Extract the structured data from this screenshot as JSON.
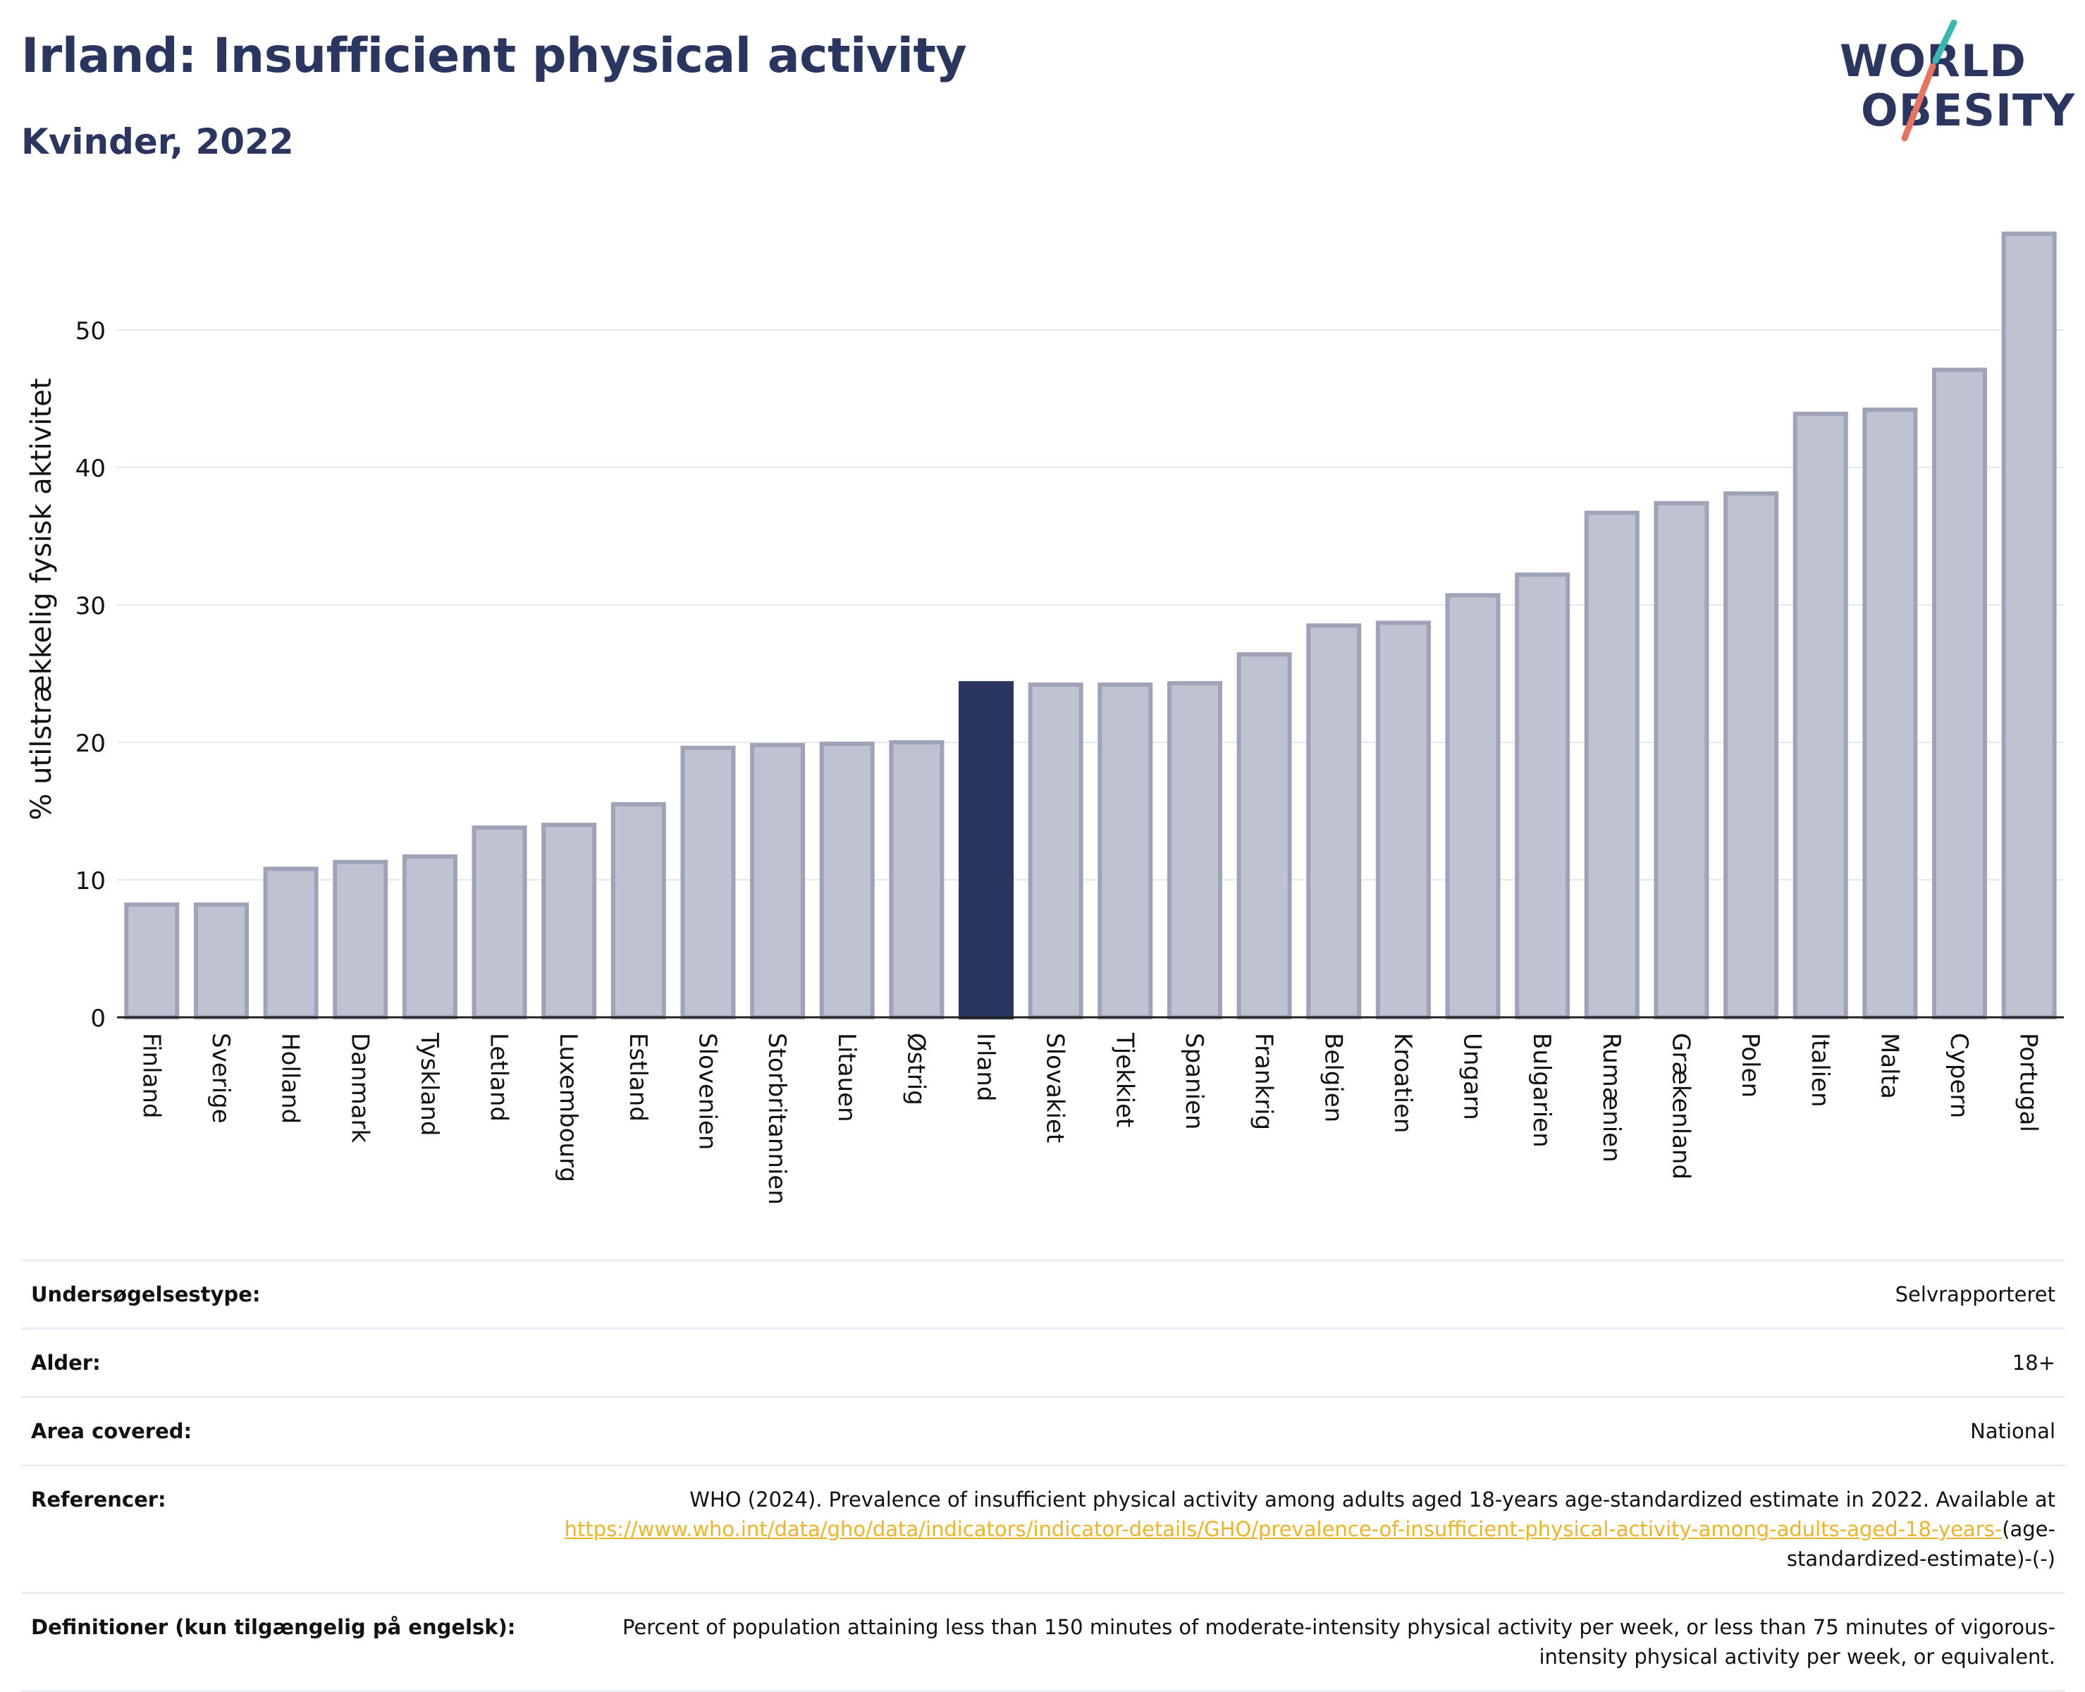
{
  "header": {
    "title": "Irland: Insufficient physical activity",
    "subtitle": "Kvinder, 2022"
  },
  "logo": {
    "line1": "WORLD",
    "line2": "OBESITY"
  },
  "colors": {
    "highlight": "#2b3660",
    "bar_fill": "#bfc2d0",
    "bar_stroke": "#9ea3b8",
    "logo_teal": "#3bb6b0",
    "logo_coral": "#e8735f",
    "link": "#f0b323"
  },
  "chart_data": {
    "type": "bar",
    "ylabel": "% utilstrækkelig fysisk aktivitet",
    "ylim": [
      0,
      57
    ],
    "yticks": [
      0,
      10,
      20,
      30,
      40,
      50
    ],
    "grid": true,
    "highlight_category": "Irland",
    "categories": [
      "Finland",
      "Sverige",
      "Holland",
      "Danmark",
      "Tyskland",
      "Letland",
      "Luxembourg",
      "Estland",
      "Slovenien",
      "Storbritannien",
      "Litauen",
      "Østrig",
      "Irland",
      "Slovakiet",
      "Tjekkiet",
      "Spanien",
      "Frankrig",
      "Belgien",
      "Kroatien",
      "Ungarn",
      "Bulgarien",
      "Rumænien",
      "Grækenland",
      "Polen",
      "Italien",
      "Malta",
      "Cypern",
      "Portugal"
    ],
    "values": [
      8.2,
      8.2,
      10.8,
      11.3,
      11.7,
      13.8,
      14.0,
      15.5,
      19.6,
      19.8,
      19.9,
      20.0,
      24.3,
      24.2,
      24.2,
      24.3,
      26.4,
      28.5,
      28.7,
      30.7,
      32.2,
      36.7,
      37.4,
      38.1,
      43.9,
      44.2,
      47.1,
      57.0
    ]
  },
  "info_table": [
    {
      "label": "Undersøgelsestype:",
      "value": "Selvrapporteret"
    },
    {
      "label": "Alder:",
      "value": "18+"
    },
    {
      "label": "Area covered:",
      "value": "National"
    }
  ],
  "references": {
    "label": "Referencer:",
    "text": "WHO (2024). Prevalence of insufficient physical activity among adults aged 18-years age-standardized estimate in 2022. Available at",
    "link": "https://www.who.int/data/gho/data/indicators/indicator-details/GHO/prevalence-of-insufficient-physical-activity-among-adults-aged-18-years-",
    "suffix": "(age-standardized-estimate)-(-)"
  },
  "definitions": {
    "label": "Definitioner (kun tilgængelig på engelsk):",
    "text": "Percent of population attaining less than 150 minutes of moderate-intensity physical activity per week, or less than 75 minutes of vigorous-intensity physical activity per week, or equivalent."
  }
}
